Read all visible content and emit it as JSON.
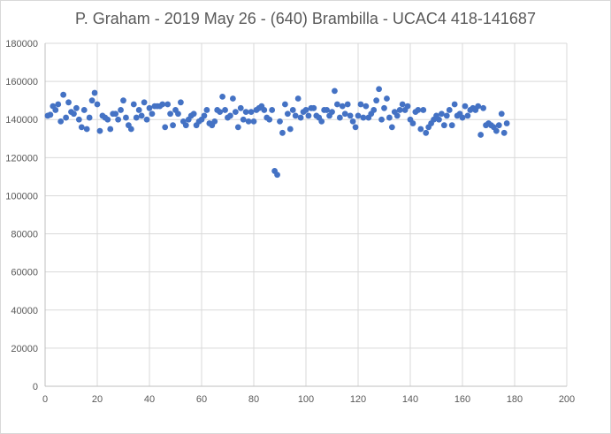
{
  "chart_data": {
    "type": "scatter",
    "title": "P. Graham - 2019 May 26 - (640) Brambilla - UCAC4 418-141687",
    "xlabel": "",
    "ylabel": "",
    "xlim": [
      0,
      200
    ],
    "ylim": [
      0,
      180000
    ],
    "grid": true,
    "legend": "none",
    "x_ticks": [
      "0",
      "20",
      "40",
      "60",
      "80",
      "100",
      "120",
      "140",
      "160",
      "180",
      "200"
    ],
    "y_ticks": [
      "0",
      "20000",
      "40000",
      "60000",
      "80000",
      "100000",
      "120000",
      "140000",
      "160000",
      "180000"
    ],
    "marker_color": "#4472c4",
    "series": [
      {
        "points": [
          [
            1,
            142000
          ],
          [
            2,
            142500
          ],
          [
            3,
            147000
          ],
          [
            4,
            145000
          ],
          [
            5,
            148000
          ],
          [
            6,
            139000
          ],
          [
            7,
            153000
          ],
          [
            8,
            141000
          ],
          [
            9,
            149000
          ],
          [
            10,
            144000
          ],
          [
            11,
            143000
          ],
          [
            12,
            146000
          ],
          [
            13,
            140000
          ],
          [
            14,
            136000
          ],
          [
            15,
            145000
          ],
          [
            16,
            135000
          ],
          [
            17,
            141000
          ],
          [
            18,
            150000
          ],
          [
            19,
            154000
          ],
          [
            20,
            148000
          ],
          [
            21,
            134000
          ],
          [
            22,
            142000
          ],
          [
            23,
            141000
          ],
          [
            24,
            140000
          ],
          [
            25,
            135000
          ],
          [
            26,
            143000
          ],
          [
            27,
            143000
          ],
          [
            28,
            140000
          ],
          [
            29,
            145000
          ],
          [
            30,
            150000
          ],
          [
            31,
            141000
          ],
          [
            32,
            137000
          ],
          [
            33,
            135000
          ],
          [
            34,
            148000
          ],
          [
            35,
            141000
          ],
          [
            36,
            145000
          ],
          [
            37,
            142000
          ],
          [
            38,
            149000
          ],
          [
            39,
            140000
          ],
          [
            40,
            146000
          ],
          [
            41,
            143000
          ],
          [
            42,
            147000
          ],
          [
            43,
            147000
          ],
          [
            44,
            147000
          ],
          [
            45,
            148000
          ],
          [
            46,
            136000
          ],
          [
            47,
            148000
          ],
          [
            48,
            143000
          ],
          [
            49,
            137000
          ],
          [
            50,
            145000
          ],
          [
            51,
            143000
          ],
          [
            52,
            149000
          ],
          [
            53,
            139000
          ],
          [
            54,
            137000
          ],
          [
            55,
            140000
          ],
          [
            56,
            142000
          ],
          [
            57,
            143000
          ],
          [
            58,
            137000
          ],
          [
            59,
            139000
          ],
          [
            60,
            140000
          ],
          [
            61,
            142000
          ],
          [
            62,
            145000
          ],
          [
            63,
            138000
          ],
          [
            64,
            137000
          ],
          [
            65,
            139000
          ],
          [
            66,
            145000
          ],
          [
            67,
            144000
          ],
          [
            68,
            152000
          ],
          [
            69,
            145000
          ],
          [
            70,
            141000
          ],
          [
            71,
            142000
          ],
          [
            72,
            151000
          ],
          [
            73,
            144000
          ],
          [
            74,
            136000
          ],
          [
            75,
            146000
          ],
          [
            76,
            140000
          ],
          [
            77,
            144000
          ],
          [
            78,
            139000
          ],
          [
            79,
            144000
          ],
          [
            80,
            139000
          ],
          [
            81,
            145000
          ],
          [
            82,
            146000
          ],
          [
            83,
            147000
          ],
          [
            84,
            145000
          ],
          [
            85,
            141000
          ],
          [
            86,
            140000
          ],
          [
            87,
            145000
          ],
          [
            88,
            113000
          ],
          [
            89,
            111000
          ],
          [
            90,
            139000
          ],
          [
            91,
            133000
          ],
          [
            92,
            148000
          ],
          [
            93,
            143000
          ],
          [
            94,
            135000
          ],
          [
            95,
            145000
          ],
          [
            96,
            142000
          ],
          [
            97,
            151000
          ],
          [
            98,
            141000
          ],
          [
            99,
            144000
          ],
          [
            100,
            145000
          ],
          [
            101,
            142000
          ],
          [
            102,
            146000
          ],
          [
            103,
            146000
          ],
          [
            104,
            142000
          ],
          [
            105,
            141000
          ],
          [
            106,
            139000
          ],
          [
            107,
            145000
          ],
          [
            108,
            145000
          ],
          [
            109,
            142000
          ],
          [
            110,
            144000
          ],
          [
            111,
            155000
          ],
          [
            112,
            148000
          ],
          [
            113,
            141000
          ],
          [
            114,
            147000
          ],
          [
            115,
            143000
          ],
          [
            116,
            148000
          ],
          [
            117,
            142000
          ],
          [
            118,
            139000
          ],
          [
            119,
            136000
          ],
          [
            120,
            142000
          ],
          [
            121,
            148000
          ],
          [
            122,
            141000
          ],
          [
            123,
            147000
          ],
          [
            124,
            141000
          ],
          [
            125,
            143000
          ],
          [
            126,
            145000
          ],
          [
            127,
            150000
          ],
          [
            128,
            156000
          ],
          [
            129,
            140000
          ],
          [
            130,
            146000
          ],
          [
            131,
            151000
          ],
          [
            132,
            141000
          ],
          [
            133,
            136000
          ],
          [
            134,
            144000
          ],
          [
            135,
            142000
          ],
          [
            136,
            145000
          ],
          [
            137,
            148000
          ],
          [
            138,
            145000
          ],
          [
            139,
            147000
          ],
          [
            140,
            140000
          ],
          [
            141,
            138000
          ],
          [
            142,
            144000
          ],
          [
            143,
            145000
          ],
          [
            144,
            135000
          ],
          [
            145,
            145000
          ],
          [
            146,
            133000
          ],
          [
            147,
            136000
          ],
          [
            148,
            138000
          ],
          [
            149,
            140000
          ],
          [
            150,
            142000
          ],
          [
            151,
            140000
          ],
          [
            152,
            143000
          ],
          [
            153,
            137000
          ],
          [
            154,
            142000
          ],
          [
            155,
            145000
          ],
          [
            156,
            137000
          ],
          [
            157,
            148000
          ],
          [
            158,
            142000
          ],
          [
            159,
            143000
          ],
          [
            160,
            141000
          ],
          [
            161,
            147000
          ],
          [
            162,
            142000
          ],
          [
            163,
            145000
          ],
          [
            164,
            146000
          ],
          [
            165,
            145000
          ],
          [
            166,
            147000
          ],
          [
            167,
            132000
          ],
          [
            168,
            146000
          ],
          [
            169,
            137000
          ],
          [
            170,
            138000
          ],
          [
            171,
            137000
          ],
          [
            172,
            136000
          ],
          [
            173,
            134000
          ],
          [
            174,
            137000
          ],
          [
            175,
            143000
          ],
          [
            176,
            133000
          ],
          [
            177,
            138000
          ]
        ]
      }
    ]
  }
}
